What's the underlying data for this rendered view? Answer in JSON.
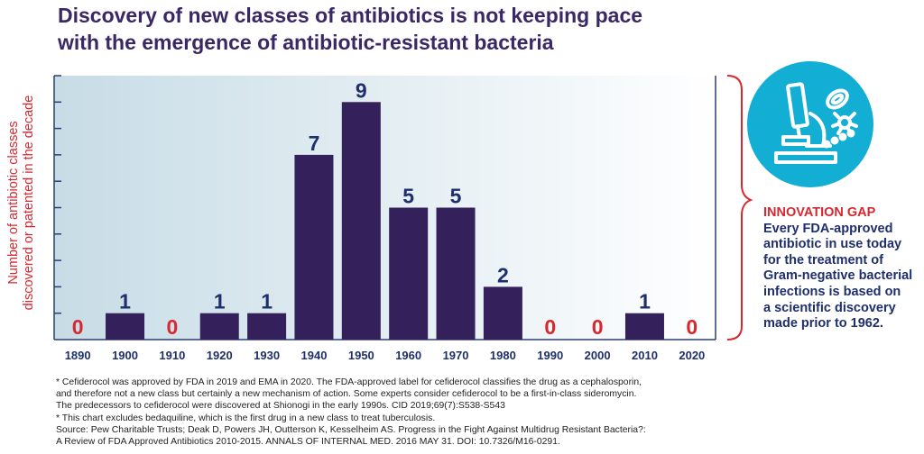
{
  "title_lines": [
    "Discovery of new classes of antibiotics is not keeping pace",
    "with the emergence of antibiotic-resistant bacteria"
  ],
  "ylabel_lines": [
    "Number of antibiotic classes",
    "discovered or patented in the decade"
  ],
  "chart_data": {
    "type": "bar",
    "categories": [
      "1890",
      "1900",
      "1910",
      "1920",
      "1930",
      "1940",
      "1950",
      "1960",
      "1970",
      "1980",
      "1990",
      "2000",
      "2010",
      "2020"
    ],
    "values": [
      0,
      1,
      0,
      1,
      1,
      7,
      9,
      5,
      5,
      2,
      0,
      0,
      1,
      0
    ],
    "data_labels": [
      "0",
      "1",
      "0",
      "1",
      "1",
      "7",
      "9",
      "5",
      "5",
      "2",
      "0",
      "0",
      "1",
      "0"
    ],
    "title": "",
    "xlabel": "",
    "ylabel": "Number of antibiotic classes discovered or patented in the decade",
    "ylim": [
      0,
      10
    ],
    "grid": false,
    "legend": "none",
    "colors": {
      "bar": "#34205a",
      "bar_label": "#1e2f6b",
      "zero_label": "#d7282f",
      "plot_bg_left": "#c7dce6",
      "plot_bg_right": "#ffffff",
      "axis": "#2a3f6e"
    }
  },
  "innovation_gap": {
    "title": "INNOVATION GAP",
    "lines": [
      "Every FDA-approved",
      "antibiotic in use today",
      "for the treatment of",
      "Gram-negative bacterial",
      "infections is based on",
      "a scientific discovery",
      "made prior to 1962."
    ],
    "icon": "microscope-bacteria-icon",
    "icon_color": "#13aed4",
    "brace_color": "#d7282f"
  },
  "footnotes": [
    "* Cefiderocol was approved by FDA in 2019 and EMA in 2020. The FDA-approved label for cefiderocol classifies the drug as a cephalosporin,",
    "and therefore not a new class but certainly a new mechanism of action. Some experts consider cefiderocol to be a first-in-class sideromycin.",
    "The predecessors to cefiderocol were discovered at Shionogi in the early 1990s. CID 2019;69(7):S538-S543",
    "* This chart excludes bedaquiline, which is the first drug in a new class to treat tuberculosis.",
    "Source: Pew Charitable Trusts; Deak D, Powers JH, Outterson K, Kesselheim AS. Progress in the Fight Against Multidrug Resistant Bacteria?:",
    "A Review of FDA Approved Antibiotics 2010-2015. ANNALS OF INTERNAL MED. 2016 MAY 31. DOI: 10.7326/M16-0291."
  ]
}
